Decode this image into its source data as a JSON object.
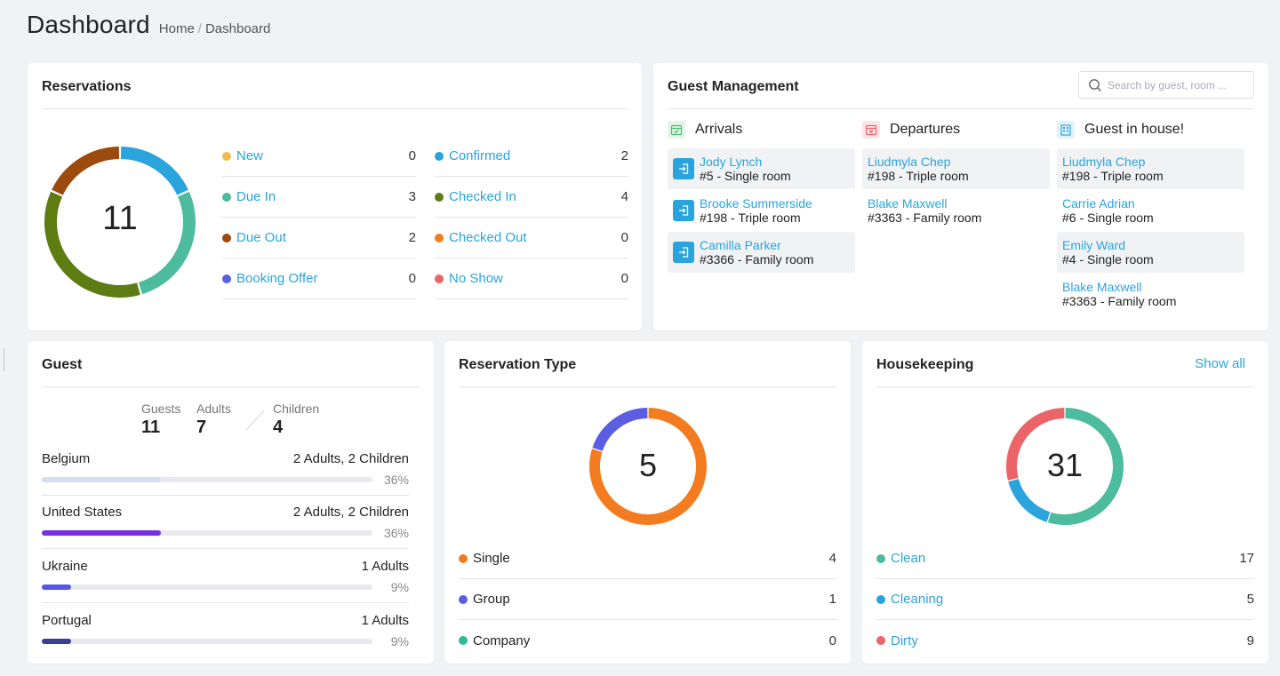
{
  "page": {
    "title": "Dashboard",
    "breadcrumb": [
      "Home",
      "Dashboard"
    ]
  },
  "reservations": {
    "title": "Reservations",
    "total": "11",
    "left_stats": [
      {
        "label": "New",
        "value": "0",
        "color": "#f5b94a"
      },
      {
        "label": "Due In",
        "value": "3",
        "color": "#4dbb9d"
      },
      {
        "label": "Due Out",
        "value": "2",
        "color": "#9c4a0e"
      },
      {
        "label": "Booking Offer",
        "value": "0",
        "color": "#5b5ee0"
      }
    ],
    "right_stats": [
      {
        "label": "Confirmed",
        "value": "2",
        "color": "#2aa4dc"
      },
      {
        "label": "Checked In",
        "value": "4",
        "color": "#5d7d12"
      },
      {
        "label": "Checked Out",
        "value": "0",
        "color": "#f47c20"
      },
      {
        "label": "No Show",
        "value": "0",
        "color": "#eb6468"
      }
    ]
  },
  "guest_management": {
    "title": "Guest Management",
    "search_placeholder": "Search by guest, room ...",
    "columns": [
      {
        "title": "Arrivals",
        "icon": "calendar-check-icon",
        "icon_color": "#4dbb6c",
        "items": [
          {
            "name": "Jody Lynch",
            "room": "#5 - Single room"
          },
          {
            "name": "Brooke Summerside",
            "room": "#198 - Triple room"
          },
          {
            "name": "Camilla Parker",
            "room": "#3366 - Family room"
          }
        ]
      },
      {
        "title": "Departures",
        "icon": "calendar-x-icon",
        "icon_color": "#eb6468",
        "items": [
          {
            "name": "Liudmyla Chep",
            "room": "#198 - Triple room"
          },
          {
            "name": "Blake Maxwell",
            "room": "#3363 - Family room"
          }
        ]
      },
      {
        "title": "Guest in house!",
        "icon": "building-icon",
        "icon_color": "#2aa4dc",
        "items": [
          {
            "name": "Liudmyla Chep",
            "room": "#198 - Triple room"
          },
          {
            "name": "Carrie Adrian",
            "room": "#6 - Single room"
          },
          {
            "name": "Emily Ward",
            "room": "#4 - Single room"
          },
          {
            "name": "Blake Maxwell",
            "room": "#3363 - Family room"
          }
        ]
      }
    ]
  },
  "guest": {
    "title": "Guest",
    "counts": [
      {
        "label": "Guests",
        "value": "11"
      },
      {
        "label": "Adults",
        "value": "7"
      },
      {
        "label": "Children",
        "value": "4"
      }
    ],
    "countries": [
      {
        "name": "Belgium",
        "detail": "2 Adults, 2 Children",
        "percent": "36%",
        "fraction": 0.36,
        "color": "#d4dff0"
      },
      {
        "name": "United States",
        "detail": "2 Adults, 2 Children",
        "percent": "36%",
        "fraction": 0.36,
        "color": "#7a2ce8"
      },
      {
        "name": "Ukraine",
        "detail": "1 Adults",
        "percent": "9%",
        "fraction": 0.09,
        "color": "#5558e3"
      },
      {
        "name": "Portugal",
        "detail": "1 Adults",
        "percent": "9%",
        "fraction": 0.09,
        "color": "#3a3f8f"
      }
    ]
  },
  "reservation_type": {
    "title": "Reservation Type",
    "total": "5",
    "items": [
      {
        "label": "Single",
        "value": "4",
        "color": "#f47c20"
      },
      {
        "label": "Group",
        "value": "1",
        "color": "#5b5ee0"
      },
      {
        "label": "Company",
        "value": "0",
        "color": "#2db99a"
      }
    ]
  },
  "housekeeping": {
    "title": "Housekeeping",
    "show_all": "Show all",
    "total": "31",
    "items": [
      {
        "label": "Clean",
        "value": "17",
        "color": "#4dbb9d"
      },
      {
        "label": "Cleaning",
        "value": "5",
        "color": "#2aa4dc"
      },
      {
        "label": "Dirty",
        "value": "9",
        "color": "#eb6468"
      }
    ]
  }
}
